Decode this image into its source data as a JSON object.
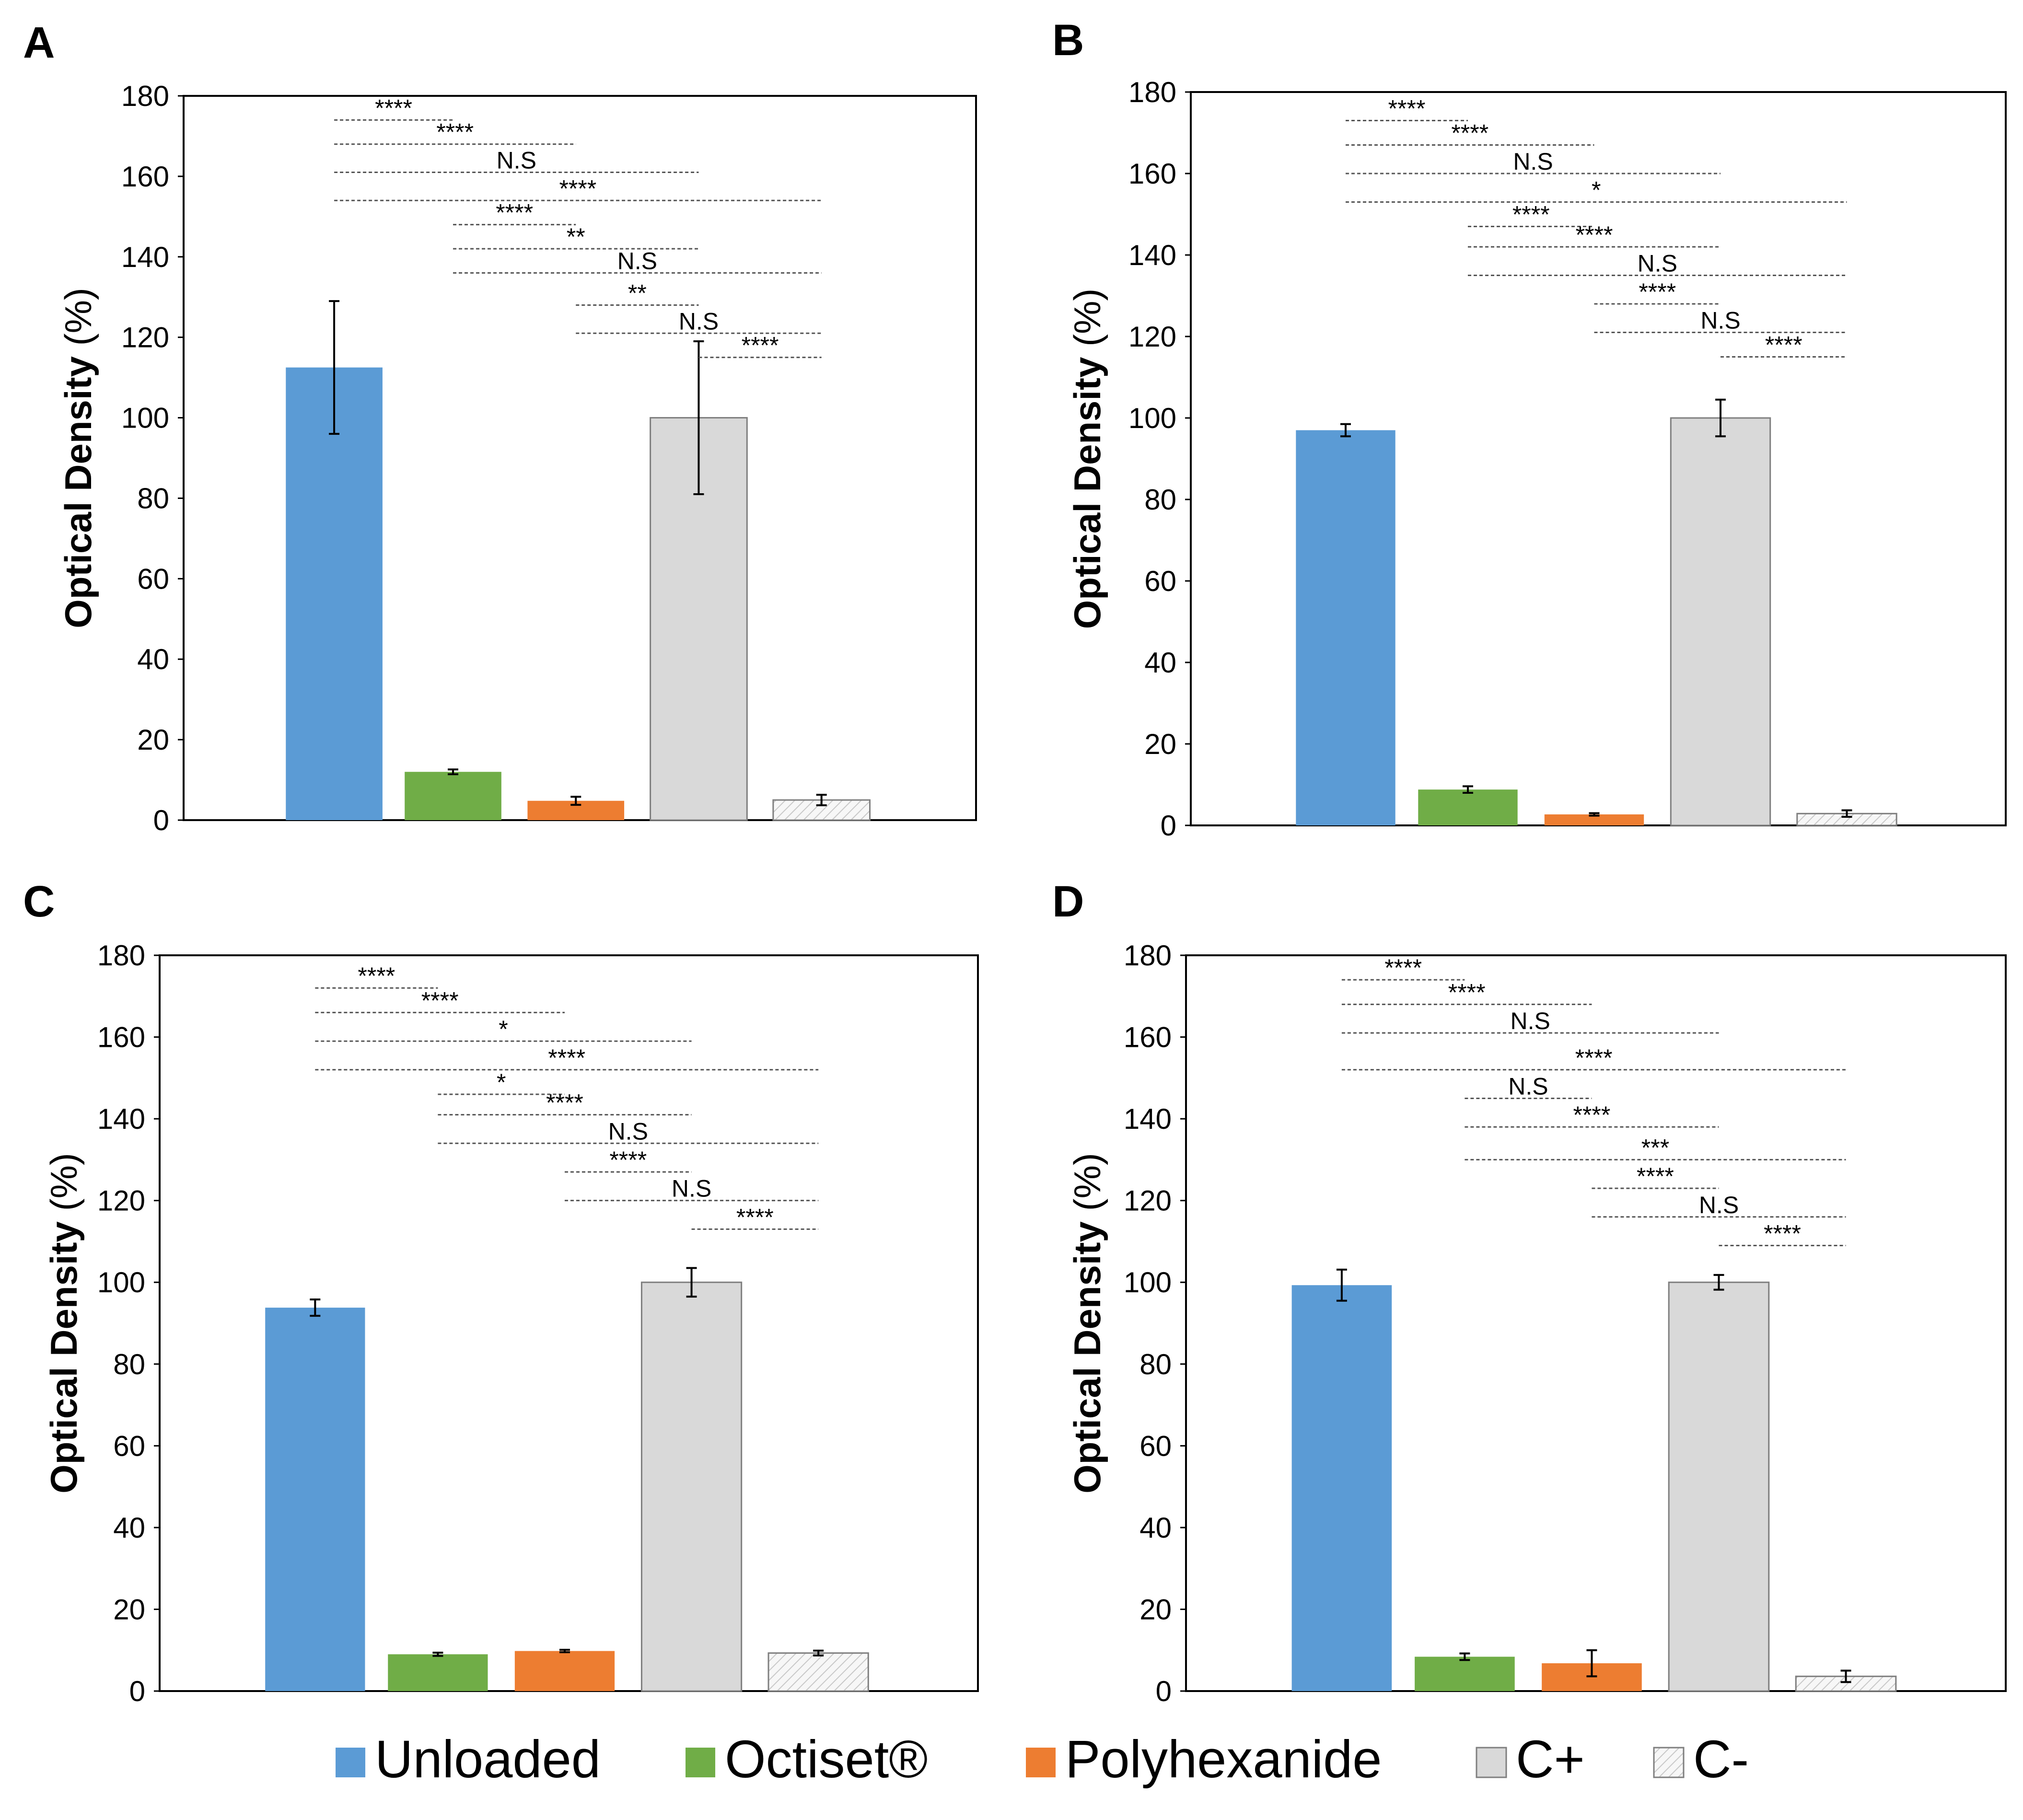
{
  "legend": {
    "items": [
      {
        "label": "Unloaded",
        "color": "#5b9bd5",
        "pattern": false
      },
      {
        "label": "Octiset®",
        "color": "#70ad47",
        "pattern": false
      },
      {
        "label": "Polyhexanide",
        "color": "#ed7d31",
        "pattern": false
      },
      {
        "label": "C+",
        "color": "#d9d9d9",
        "pattern": false
      },
      {
        "label": "C-",
        "color": "#f2f2f2",
        "pattern": true
      }
    ]
  },
  "chart_data": [
    {
      "panel": "A",
      "type": "bar",
      "categories": [
        "Unloaded",
        "Octiset®",
        "Polyhexanide",
        "C+",
        "C-"
      ],
      "values": [
        112.5,
        12,
        4.8,
        100,
        5
      ],
      "errors": [
        16.5,
        0.6,
        1.0,
        19,
        1.3
      ],
      "ylabel": "Optical Density",
      "ylabel_unit": "(%)",
      "ylim": [
        0,
        180
      ],
      "yticks": [
        "0",
        "20",
        "40",
        "60",
        "80",
        "100",
        "120",
        "140",
        "160",
        "180"
      ],
      "significance": [
        {
          "from": 0,
          "to": 1,
          "label": "****",
          "y": 174
        },
        {
          "from": 0,
          "to": 2,
          "label": "****",
          "y": 168
        },
        {
          "from": 0,
          "to": 3,
          "label": "N.S",
          "y": 161
        },
        {
          "from": 0,
          "to": 4,
          "label": "****",
          "y": 154
        },
        {
          "from": 1,
          "to": 2,
          "label": "****",
          "y": 148
        },
        {
          "from": 1,
          "to": 3,
          "label": "**",
          "y": 142
        },
        {
          "from": 1,
          "to": 4,
          "label": "N.S",
          "y": 136
        },
        {
          "from": 2,
          "to": 3,
          "label": "**",
          "y": 128
        },
        {
          "from": 2,
          "to": 4,
          "label": "N.S",
          "y": 121
        },
        {
          "from": 3,
          "to": 4,
          "label": "****",
          "y": 115
        }
      ]
    },
    {
      "panel": "B",
      "type": "bar",
      "categories": [
        "Unloaded",
        "Octiset®",
        "Polyhexanide",
        "C+",
        "C-"
      ],
      "values": [
        97,
        8.8,
        2.7,
        100,
        2.9
      ],
      "errors": [
        1.5,
        0.8,
        0.3,
        4.5,
        0.8
      ],
      "ylabel": "Optical Density",
      "ylabel_unit": "(%)",
      "ylim": [
        0,
        180
      ],
      "yticks": [
        "0",
        "20",
        "40",
        "60",
        "80",
        "100",
        "120",
        "140",
        "160",
        "180"
      ],
      "significance": [
        {
          "from": 0,
          "to": 1,
          "label": "****",
          "y": 173
        },
        {
          "from": 0,
          "to": 2,
          "label": "****",
          "y": 167
        },
        {
          "from": 0,
          "to": 3,
          "label": "N.S",
          "y": 160
        },
        {
          "from": 0,
          "to": 4,
          "label": "*",
          "y": 153
        },
        {
          "from": 1,
          "to": 2,
          "label": "****",
          "y": 147
        },
        {
          "from": 1,
          "to": 3,
          "label": "****",
          "y": 142
        },
        {
          "from": 1,
          "to": 4,
          "label": "N.S",
          "y": 135
        },
        {
          "from": 2,
          "to": 3,
          "label": "****",
          "y": 128
        },
        {
          "from": 2,
          "to": 4,
          "label": "N.S",
          "y": 121
        },
        {
          "from": 3,
          "to": 4,
          "label": "****",
          "y": 115
        }
      ]
    },
    {
      "panel": "C",
      "type": "bar",
      "categories": [
        "Unloaded",
        "Octiset®",
        "Polyhexanide",
        "C+",
        "C-"
      ],
      "values": [
        93.8,
        9,
        9.8,
        100,
        9.3
      ],
      "errors": [
        2,
        0.4,
        0.3,
        3.5,
        0.6
      ],
      "ylabel": "Optical Density",
      "ylabel_unit": "(%)",
      "ylim": [
        0,
        180
      ],
      "yticks": [
        "0",
        "20",
        "40",
        "60",
        "80",
        "100",
        "120",
        "140",
        "160",
        "180"
      ],
      "significance": [
        {
          "from": 0,
          "to": 1,
          "label": "****",
          "y": 172
        },
        {
          "from": 0,
          "to": 2,
          "label": "****",
          "y": 166
        },
        {
          "from": 0,
          "to": 3,
          "label": "*",
          "y": 159
        },
        {
          "from": 0,
          "to": 4,
          "label": "****",
          "y": 152
        },
        {
          "from": 1,
          "to": 2,
          "label": "*",
          "y": 146
        },
        {
          "from": 1,
          "to": 3,
          "label": "****",
          "y": 141
        },
        {
          "from": 1,
          "to": 4,
          "label": "N.S",
          "y": 134
        },
        {
          "from": 2,
          "to": 3,
          "label": "****",
          "y": 127
        },
        {
          "from": 2,
          "to": 4,
          "label": "N.S",
          "y": 120
        },
        {
          "from": 3,
          "to": 4,
          "label": "****",
          "y": 113
        }
      ]
    },
    {
      "panel": "D",
      "type": "bar",
      "categories": [
        "Unloaded",
        "Octiset®",
        "Polyhexanide",
        "C+",
        "C-"
      ],
      "values": [
        99.3,
        8.4,
        6.8,
        100,
        3.6
      ],
      "errors": [
        3.8,
        0.8,
        3.2,
        1.8,
        1.4
      ],
      "ylabel": "Optical Density",
      "ylabel_unit": "(%)",
      "ylim": [
        0,
        180
      ],
      "yticks": [
        "0",
        "20",
        "40",
        "60",
        "80",
        "100",
        "120",
        "140",
        "160",
        "180"
      ],
      "significance": [
        {
          "from": 0,
          "to": 1,
          "label": "****",
          "y": 174
        },
        {
          "from": 0,
          "to": 2,
          "label": "****",
          "y": 168
        },
        {
          "from": 0,
          "to": 3,
          "label": "N.S",
          "y": 161
        },
        {
          "from": 0,
          "to": 4,
          "label": "****",
          "y": 152
        },
        {
          "from": 1,
          "to": 2,
          "label": "N.S",
          "y": 145
        },
        {
          "from": 1,
          "to": 3,
          "label": "****",
          "y": 138
        },
        {
          "from": 1,
          "to": 4,
          "label": "***",
          "y": 130
        },
        {
          "from": 2,
          "to": 3,
          "label": "****",
          "y": 123
        },
        {
          "from": 2,
          "to": 4,
          "label": "N.S",
          "y": 116
        },
        {
          "from": 3,
          "to": 4,
          "label": "****",
          "y": 109
        }
      ]
    }
  ]
}
